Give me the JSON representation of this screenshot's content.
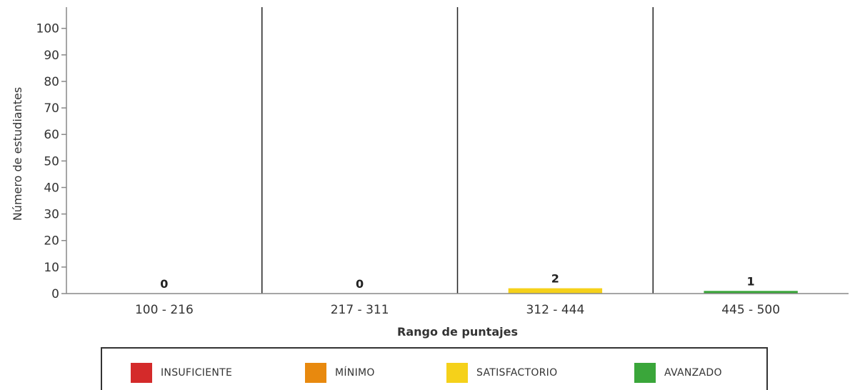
{
  "chart_data": {
    "type": "bar",
    "categories": [
      "100 - 216",
      "217 - 311",
      "312 - 444",
      "445 - 500"
    ],
    "values": [
      0,
      0,
      2,
      1
    ],
    "bar_colors": [
      "#d42a2a",
      "#e8890e",
      "#f5d11a",
      "#3aa63a"
    ],
    "xlabel": "Rango de puntajes",
    "ylabel": "Número de estudiantes",
    "ylim": [
      0,
      108
    ],
    "yticks": [
      0,
      10,
      20,
      30,
      40,
      50,
      60,
      70,
      80,
      90,
      100
    ],
    "grid": false,
    "category_separators": true,
    "legend_position": "bottom",
    "legend": [
      {
        "label": "INSUFICIENTE",
        "color": "#d42a2a"
      },
      {
        "label": "MÍNIMO",
        "color": "#e8890e"
      },
      {
        "label": "SATISFACTORIO",
        "color": "#f5d11a"
      },
      {
        "label": "AVANZADO",
        "color": "#3aa63a"
      }
    ]
  }
}
